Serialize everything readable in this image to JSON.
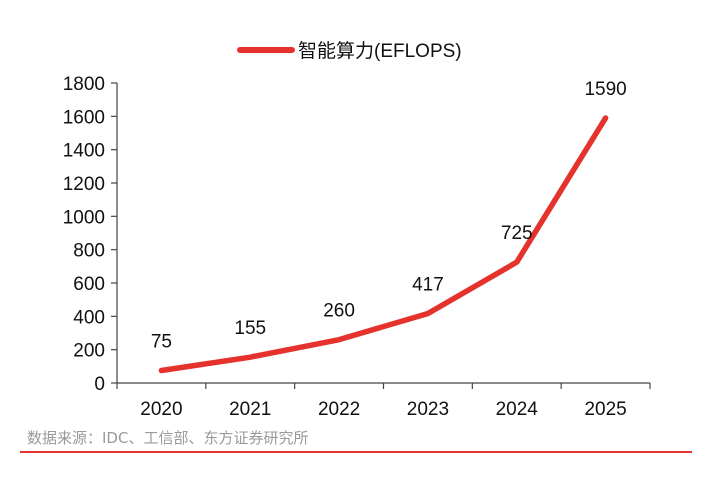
{
  "chart_data": {
    "type": "line",
    "title": "",
    "xlabel": "",
    "ylabel": "",
    "categories": [
      "2020",
      "2021",
      "2022",
      "2023",
      "2024",
      "2025"
    ],
    "series": [
      {
        "name": "智能算力(EFLOPS)",
        "values": [
          75,
          155,
          260,
          417,
          725,
          1590
        ],
        "color": "#e5322d"
      }
    ],
    "data_labels": [
      "75",
      "155",
      "260",
      "417",
      "725",
      "1590"
    ],
    "ylim": [
      0,
      1800
    ],
    "yticks": [
      0,
      200,
      400,
      600,
      800,
      1000,
      1200,
      1400,
      1600,
      1800
    ],
    "ytick_labels": [
      "0",
      "200",
      "400",
      "600",
      "800",
      "1000",
      "1200",
      "1400",
      "1600",
      "1800"
    ],
    "grid": false,
    "legend_position": "top-center"
  },
  "source": "数据来源：IDC、工信部、东方证券研究所",
  "colors": {
    "series_line": "#e5322d",
    "axis": "#444444",
    "text": "#111111",
    "source_text": "#9a9a9a",
    "rule": "#e5322d"
  }
}
